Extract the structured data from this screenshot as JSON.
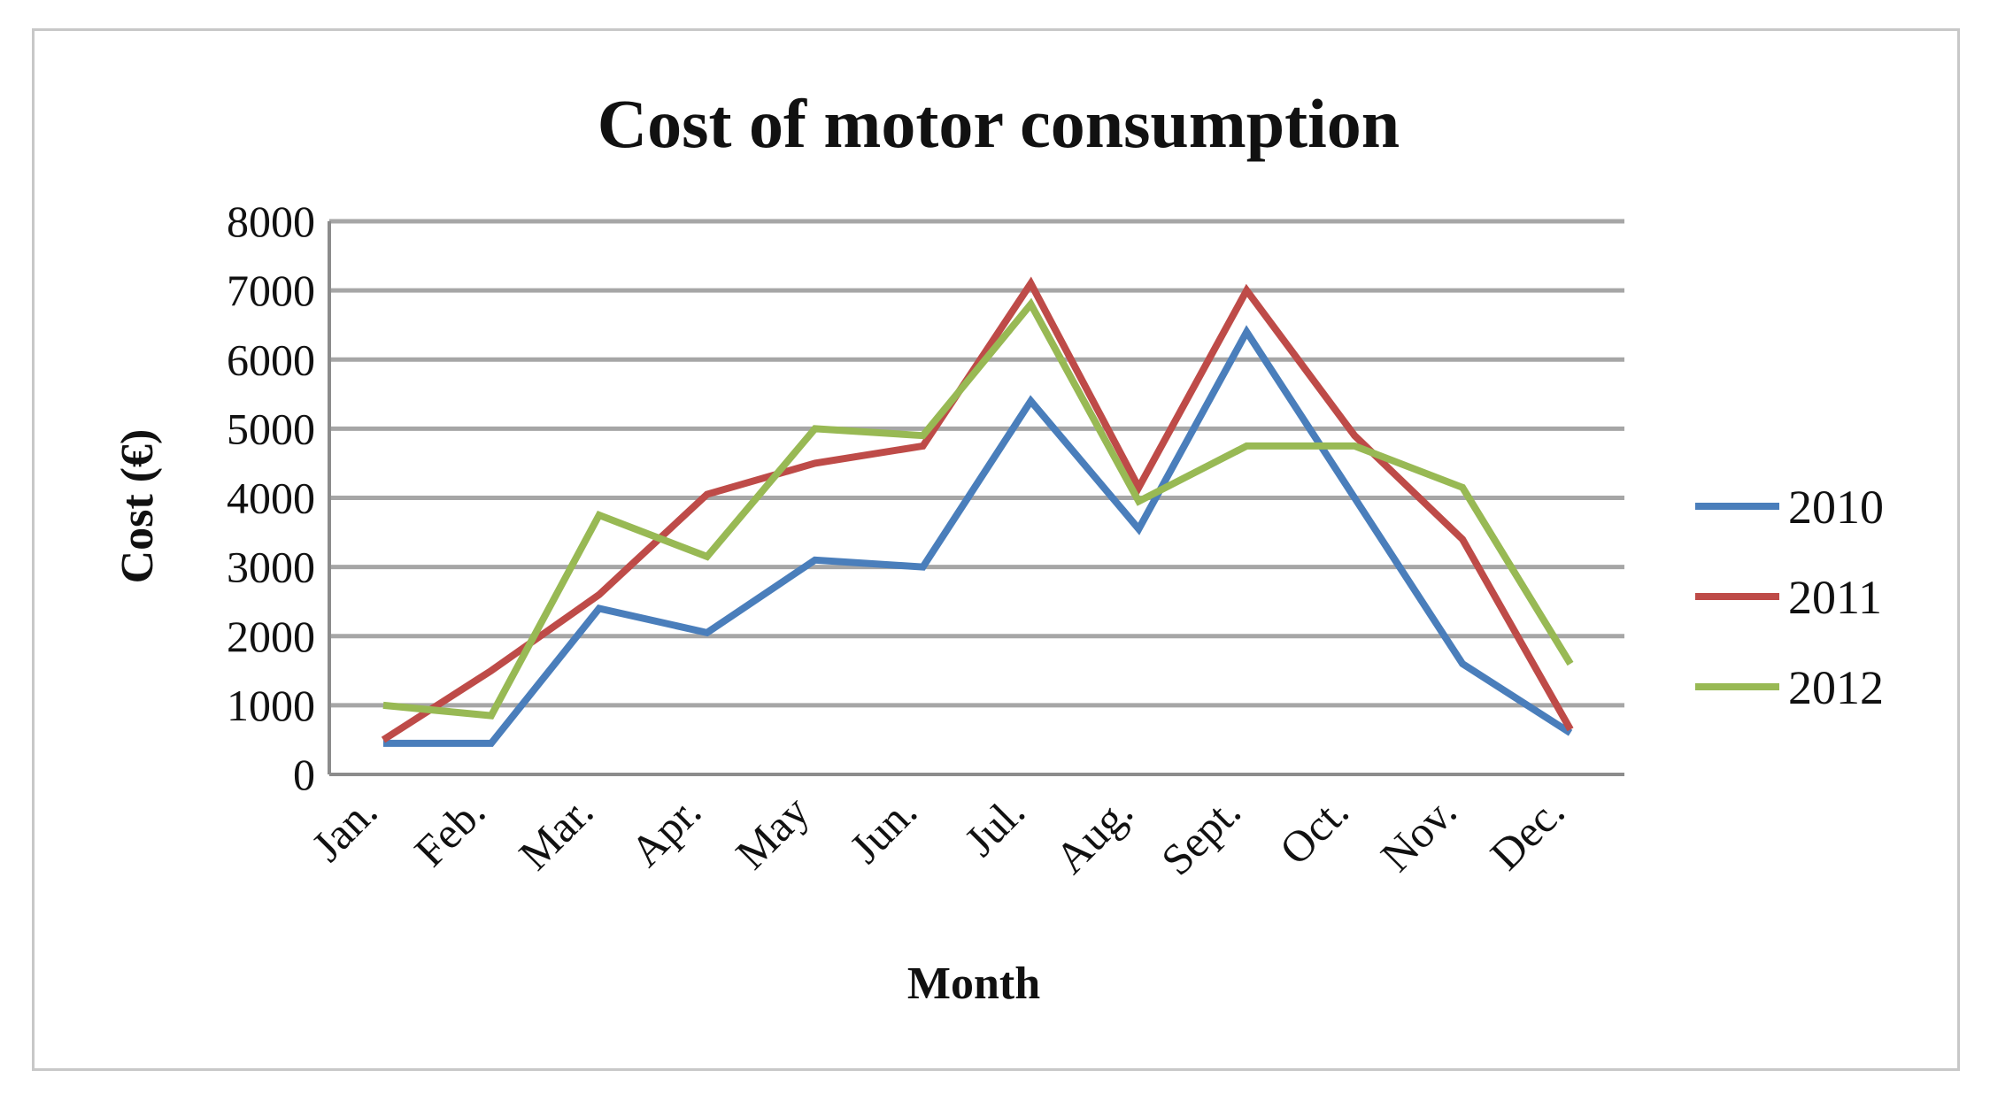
{
  "chart_data": {
    "type": "line",
    "title": "Cost of motor consumption",
    "xlabel": "Month",
    "ylabel": "Cost (€)",
    "ylim": [
      0,
      8000
    ],
    "yticks": [
      0,
      1000,
      2000,
      3000,
      4000,
      5000,
      6000,
      7000,
      8000
    ],
    "grid": true,
    "legend_position": "right",
    "categories": [
      "Jan.",
      "Feb.",
      "Mar.",
      "Apr.",
      "May",
      "Jun.",
      "Jul.",
      "Aug.",
      "Sept.",
      "Oct.",
      "Nov.",
      "Dec."
    ],
    "series": [
      {
        "name": "2010",
        "color": "#4a7ebb",
        "values": [
          450,
          450,
          2400,
          2050,
          3100,
          3000,
          5400,
          3550,
          6400,
          4000,
          1600,
          600
        ]
      },
      {
        "name": "2011",
        "color": "#be4b48",
        "values": [
          500,
          1500,
          2600,
          4050,
          4500,
          4750,
          7100,
          4150,
          7000,
          4900,
          3400,
          650
        ]
      },
      {
        "name": "2012",
        "color": "#98b954",
        "values": [
          1000,
          850,
          3750,
          3150,
          5000,
          4900,
          6800,
          3950,
          4750,
          4750,
          4150,
          1600
        ]
      }
    ]
  }
}
